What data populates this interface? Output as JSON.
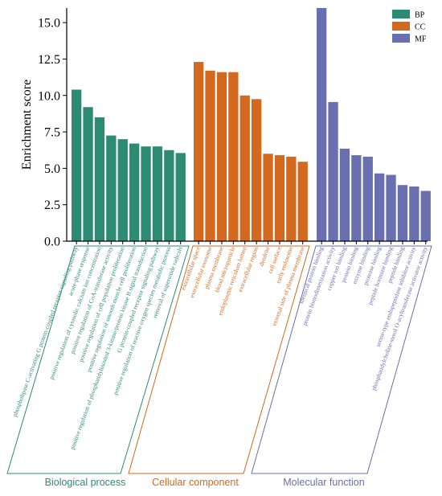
{
  "chart_data": {
    "type": "bar",
    "ylabel": "Enrichment score",
    "ylim": [
      0,
      16
    ],
    "yticks": [
      "0.0",
      "2.5",
      "5.0",
      "7.5",
      "10.0",
      "12.5",
      "15.0"
    ],
    "ytick_values": [
      0,
      2.5,
      5,
      7.5,
      10,
      12.5,
      15
    ],
    "legend_position": "top-right",
    "grid": false,
    "groups": [
      {
        "key": "BP",
        "name": "Biological process",
        "color": "#2e8b73",
        "categories": [
          "phospholipase C-activating G protein-coupled receptor signaling pathway",
          "acute-phase response",
          "positive regulation of cytosolic calcium ion concentration",
          "positive regulation of CoA-transferase activity",
          "positive regulation of cell population proliferation",
          "positive regulation of smooth muscle cell proliferation",
          "positive regulation of phosphatidylinositol 3-kinase/protein kinase B signal transduction",
          "G protein-coupled receptor signaling pathway",
          "positive regulation of reactive oxygen species metabolic process",
          "removal of superoxide radicals"
        ],
        "values": [
          10.4,
          9.2,
          8.5,
          7.25,
          7.0,
          6.7,
          6.5,
          6.5,
          6.25,
          6.05
        ]
      },
      {
        "key": "CC",
        "name": "Cellular component",
        "color": "#d2691e",
        "categories": [
          "extracellular space",
          "extracellular exosome",
          "plasma membrane",
          "blood microparticle",
          "endoplasmic reticulum lumen",
          "extracellular region",
          "dendrite",
          "cell surface",
          "early endosome",
          "external side of plasma membrane"
        ],
        "values": [
          12.3,
          11.7,
          11.6,
          11.6,
          10.0,
          9.75,
          6.0,
          5.9,
          5.8,
          5.45
        ]
      },
      {
        "key": "MF",
        "name": "Molecular function",
        "color": "#6a6fb0",
        "categories": [
          "identical protein binding",
          "protein homodimerization activity",
          "copper ion binding",
          "protein binding",
          "enzyme binding",
          "protease binding",
          "peptide hormone binding",
          "peptide binding",
          "serine-type endopeptidase inhibitor activity",
          "phosphatidylcholine-sterol O-acyltransferase activator activity"
        ],
        "values": [
          16.0,
          9.55,
          6.35,
          5.9,
          5.8,
          4.65,
          4.55,
          3.85,
          3.75,
          3.45
        ]
      }
    ]
  }
}
